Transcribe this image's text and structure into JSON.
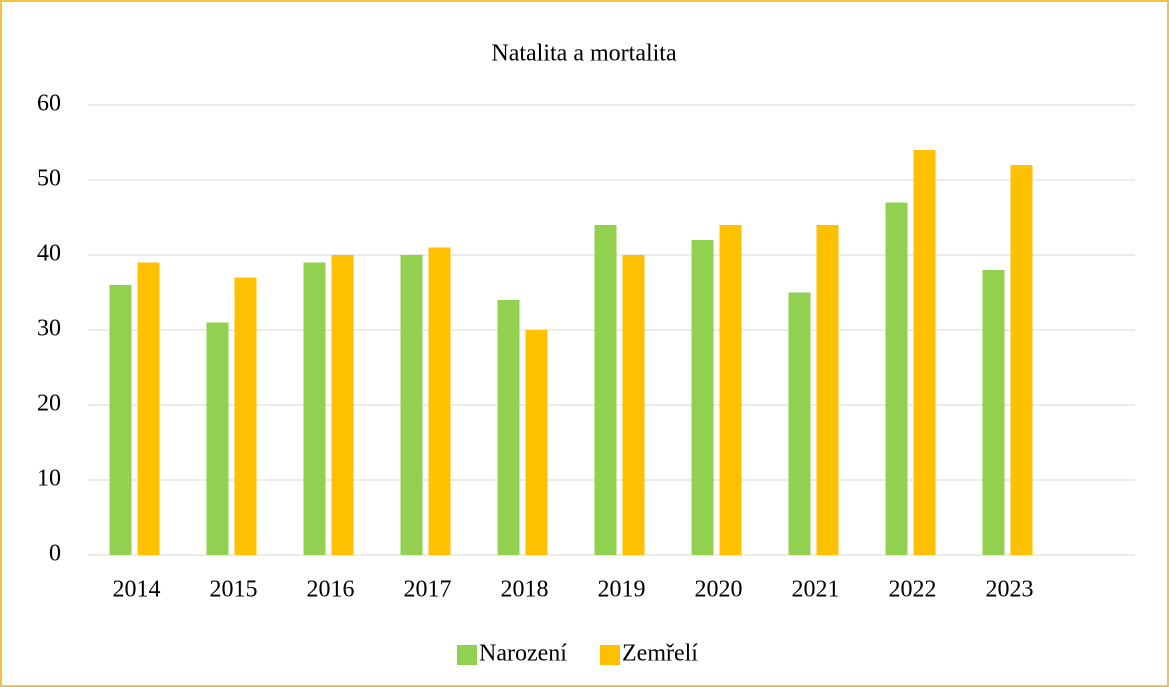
{
  "chart_data": {
    "type": "bar",
    "title": "Natalita a mortalita",
    "categories": [
      "2014",
      "2015",
      "2016",
      "2017",
      "2018",
      "2019",
      "2020",
      "2021",
      "2022",
      "2023"
    ],
    "series": [
      {
        "name": "Narození",
        "color": "#92d050",
        "values": [
          36,
          31,
          39,
          40,
          34,
          44,
          42,
          35,
          47,
          38
        ]
      },
      {
        "name": "Zemřelí",
        "color": "#ffc000",
        "values": [
          39,
          37,
          40,
          41,
          30,
          40,
          44,
          44,
          54,
          52
        ]
      }
    ],
    "ylim": [
      0,
      60
    ],
    "yticks": [
      0,
      10,
      20,
      30,
      40,
      50,
      60
    ],
    "grid": true,
    "legend": "bottom"
  }
}
